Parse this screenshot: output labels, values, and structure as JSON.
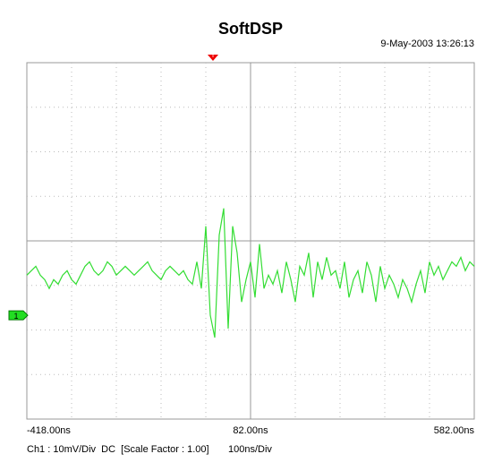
{
  "chart_data": {
    "type": "line",
    "title": "SoftDSP",
    "timestamp": "9-May-2003 13:26:13",
    "status": "Ch1 : 10mV/Div  DC  [Scale Factor : 1.00]",
    "timebase": "100ns/Div",
    "channel_marker": "1",
    "trigger_marker": "T",
    "xlim": [
      -418,
      582
    ],
    "ylim": [
      -23.3,
      56.7
    ],
    "xticks": [
      {
        "value": -418,
        "label": "-418.00ns"
      },
      {
        "value": 82,
        "label": "82.00ns"
      },
      {
        "value": 582,
        "label": "582.00ns"
      }
    ],
    "series": [
      {
        "name": "Ch1",
        "color": "#33dd33",
        "x": [
          -418,
          -408,
          -398,
          -388,
          -378,
          -368,
          -358,
          -348,
          -338,
          -328,
          -318,
          -308,
          -298,
          -288,
          -278,
          -268,
          -258,
          -248,
          -238,
          -228,
          -218,
          -208,
          -198,
          -188,
          -178,
          -168,
          -158,
          -148,
          -138,
          -128,
          -118,
          -108,
          -98,
          -88,
          -78,
          -68,
          -58,
          -48,
          -38,
          -28,
          -18,
          -8,
          2,
          12,
          22,
          32,
          42,
          52,
          62,
          72,
          82,
          92,
          102,
          112,
          122,
          132,
          142,
          152,
          162,
          172,
          182,
          192,
          202,
          212,
          222,
          232,
          242,
          252,
          262,
          272,
          282,
          292,
          302,
          312,
          322,
          332,
          342,
          352,
          362,
          372,
          382,
          392,
          402,
          412,
          422,
          432,
          442,
          452,
          462,
          472,
          482,
          492,
          502,
          512,
          522,
          532,
          542,
          552,
          562,
          572,
          582
        ],
        "values": [
          9,
          10,
          11,
          9,
          8,
          6,
          8,
          7,
          9,
          10,
          8,
          7,
          9,
          11,
          12,
          10,
          9,
          10,
          12,
          11,
          9,
          10,
          11,
          10,
          9,
          10,
          11,
          12,
          10,
          9,
          8,
          10,
          11,
          10,
          9,
          10,
          8,
          7,
          12,
          6,
          20,
          0,
          -5,
          18,
          24,
          -3,
          20,
          14,
          3,
          8,
          12,
          4,
          16,
          6,
          9,
          7,
          10,
          5,
          12,
          8,
          3,
          11,
          9,
          14,
          4,
          12,
          8,
          13,
          9,
          10,
          6,
          12,
          4,
          8,
          10,
          5,
          12,
          9,
          3,
          11,
          6,
          9,
          7,
          4,
          8,
          6,
          3,
          7,
          10,
          5,
          12,
          9,
          11,
          8,
          10,
          12,
          11,
          13,
          10,
          12,
          11
        ]
      }
    ]
  }
}
